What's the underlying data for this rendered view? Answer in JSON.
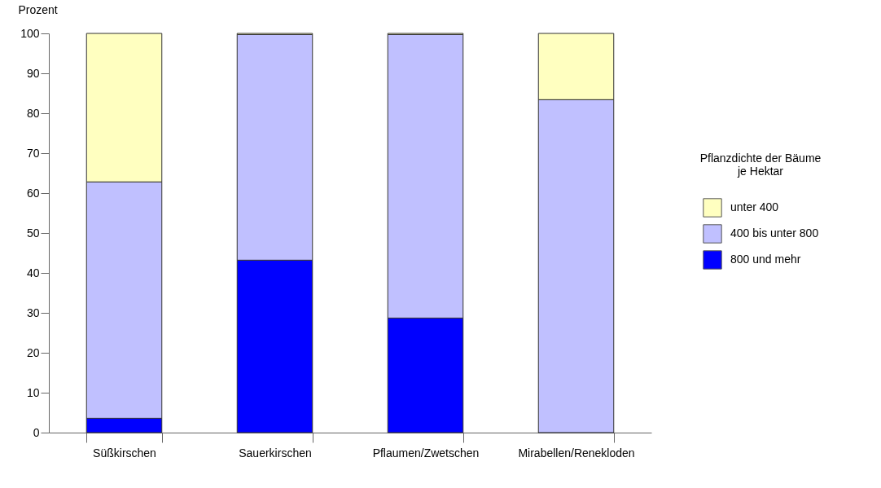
{
  "chart_data": {
    "type": "bar",
    "stacked": true,
    "ylabel": "Prozent",
    "legend_title": "Pflanzdichte der Bäume je Hektar",
    "legend": "right",
    "categories": [
      "Süßkirschen",
      "Sauerkirschen",
      "Pflaumen/Zwetschen",
      "Mirabellen/Renekloden"
    ],
    "ylim": [
      0,
      100
    ],
    "yticks": [
      0,
      10,
      20,
      30,
      40,
      50,
      60,
      70,
      80,
      90,
      100
    ],
    "series": [
      {
        "name": "800 und mehr",
        "color": "#0000ff",
        "values": [
          3.6,
          43.2,
          28.7,
          0
        ]
      },
      {
        "name": "400 bis unter 800",
        "color": "#c0c0ff",
        "values": [
          59.2,
          56.5,
          71.0,
          83.4
        ]
      },
      {
        "name": "unter 400",
        "color": "#ffffc0",
        "values": [
          37.2,
          0.3,
          0.3,
          16.6
        ]
      }
    ]
  }
}
